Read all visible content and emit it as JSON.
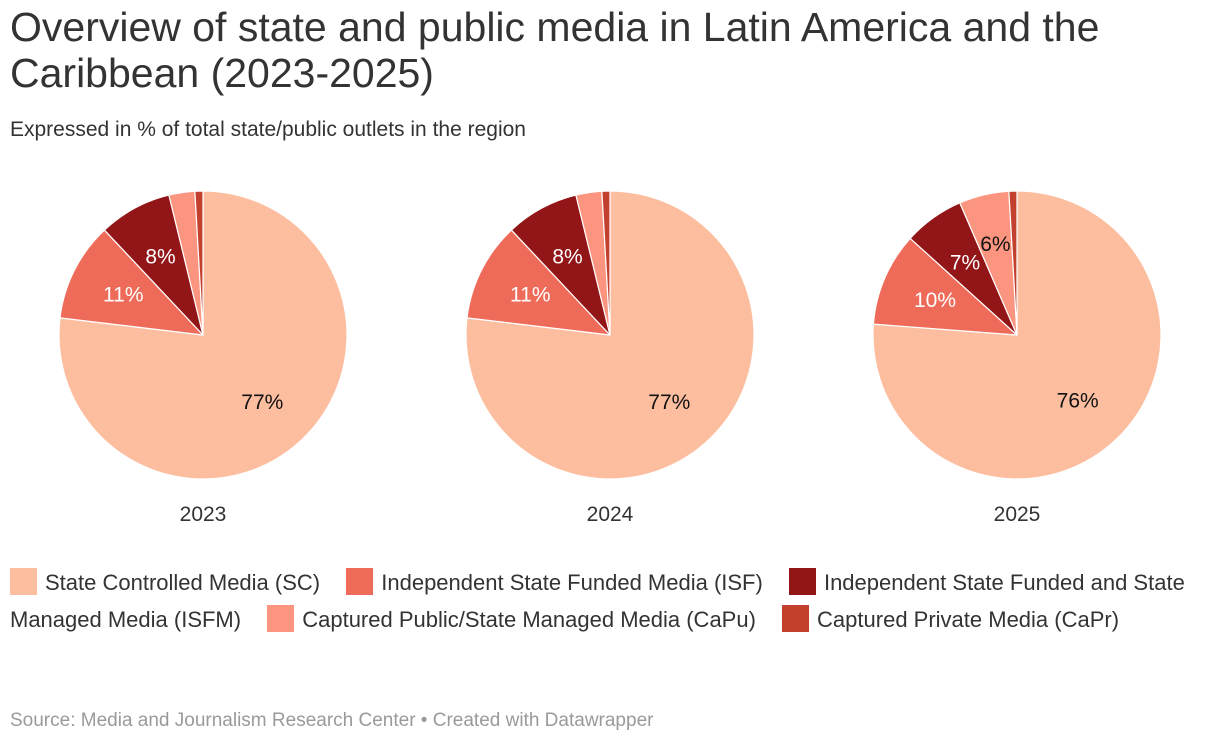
{
  "title": "Overview of state and public media in Latin America and the Caribbean (2023-2025)",
  "subtitle": "Expressed in % of total state/public outlets in the region",
  "source": "Source: Media and Journalism Research Center • Created with Datawrapper",
  "chart_data": {
    "type": "pie",
    "title": "Overview of state and public media in Latin America and the Caribbean (2023-2025)",
    "subtitle": "Expressed in % of total state/public outlets in the region",
    "unit": "%",
    "legend_position": "bottom",
    "categories": [
      {
        "key": "SC",
        "label": "State Controlled Media (SC)",
        "color": "#fdbea0"
      },
      {
        "key": "ISF",
        "label": "Independent State Funded Media (ISF)",
        "color": "#ef6b59"
      },
      {
        "key": "ISFM",
        "label": "Independent State Funded and State Managed Media (ISFM)",
        "color": "#921517"
      },
      {
        "key": "CaPu",
        "label": "Captured Public/State Managed Media (CaPu)",
        "color": "#fc9580"
      },
      {
        "key": "CaPr",
        "label": "Captured Private Media (CaPr)",
        "color": "#c3402f"
      }
    ],
    "pies": [
      {
        "year": "2023",
        "values": [
          76.9,
          11.1,
          8.2,
          2.9,
          0.9
        ]
      },
      {
        "year": "2024",
        "values": [
          76.9,
          11.1,
          8.2,
          2.9,
          0.9
        ]
      },
      {
        "year": "2025",
        "values": [
          76.2,
          10.5,
          6.8,
          5.6,
          0.9
        ]
      }
    ],
    "visible_labels": [
      [
        {
          "text": "77%",
          "slice": 0
        },
        {
          "text": "11%",
          "slice": 1
        },
        {
          "text": "8%",
          "slice": 2
        }
      ],
      [
        {
          "text": "77%",
          "slice": 0
        },
        {
          "text": "11%",
          "slice": 1
        },
        {
          "text": "8%",
          "slice": 2
        }
      ],
      [
        {
          "text": "76%",
          "slice": 0
        },
        {
          "text": "10%",
          "slice": 1
        },
        {
          "text": "7%",
          "slice": 2
        },
        {
          "text": "6%",
          "slice": 3
        }
      ]
    ],
    "label_colors": {
      "light": "#ffffff",
      "dark": "#111111"
    }
  }
}
